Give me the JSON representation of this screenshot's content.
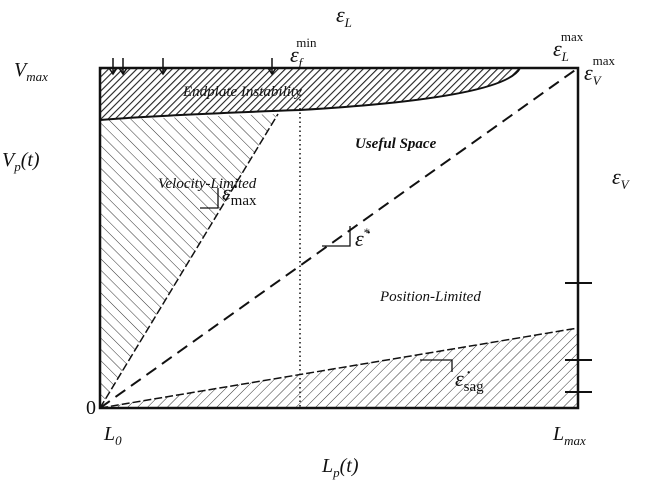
{
  "labels": {
    "top_axis": {
      "base": "ε",
      "sub": "L"
    },
    "eps_f_min": {
      "base": "ε",
      "sub": "f",
      "sup": "min"
    },
    "eps_L_max": {
      "base": "ε",
      "sub": "L",
      "sup": "max"
    },
    "eps_V_max": {
      "base": "ε",
      "sub": "V",
      "sup": "max"
    },
    "v_max": {
      "base": "V",
      "sub": "max"
    },
    "y_axis": {
      "base": "V",
      "sub": "p",
      "rest": "(t)"
    },
    "right_axis": {
      "base": "ε",
      "sub": "V"
    },
    "origin": "0",
    "l0": {
      "base": "L",
      "sub": "0"
    },
    "l_max": {
      "base": "L",
      "sub": "max"
    },
    "x_axis": {
      "base": "L",
      "sub": "p",
      "rest": "(t)"
    },
    "endplate": "Endplate Instability",
    "velocity": "Velocity-Limited",
    "useful": "Useful Space",
    "position": "Position-Limited",
    "rate_max": {
      "base": "ε̇",
      "sub": "max"
    },
    "rate_star": {
      "base": "ε̇",
      "sup": "*"
    },
    "rate_sag": {
      "base": "ε̇",
      "sub": "sag"
    }
  }
}
